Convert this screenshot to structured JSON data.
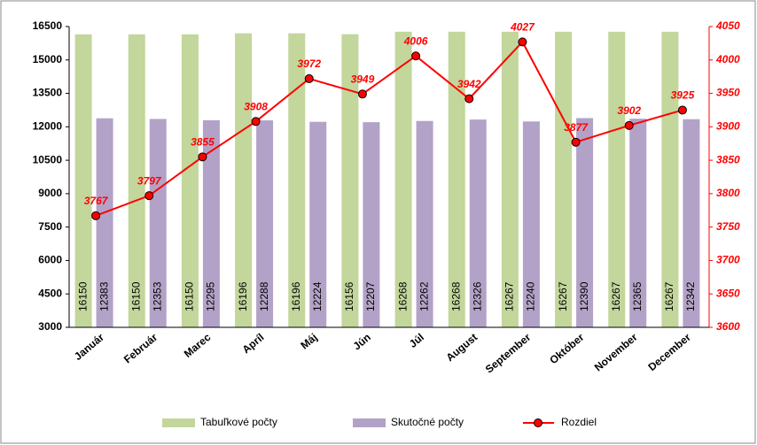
{
  "chart_data": {
    "type": "bar",
    "categories": [
      "Január",
      "Február",
      "Marec",
      "Apríl",
      "Máj",
      "Jún",
      "Júl",
      "August",
      "September",
      "Október",
      "November",
      "December"
    ],
    "series": [
      {
        "name": "Tabuľkové počty",
        "color": "#c3d69b",
        "values": [
          16150,
          16150,
          16150,
          16196,
          16196,
          16156,
          16268,
          16268,
          16267,
          16267,
          16267,
          16267
        ]
      },
      {
        "name": "Skutočné počty",
        "color": "#b3a2c7",
        "values": [
          12383,
          12353,
          12295,
          12288,
          12224,
          12207,
          12262,
          12326,
          12240,
          12390,
          12365,
          12342
        ]
      },
      {
        "name": "Rozdiel",
        "color": "#ff0000",
        "type": "line",
        "axis": "y2",
        "values": [
          3767,
          3797,
          3855,
          3908,
          3972,
          3949,
          4006,
          3942,
          4027,
          3877,
          3902,
          3925
        ]
      }
    ],
    "ylim": [
      3000,
      16500
    ],
    "yticks": [
      3000,
      4500,
      6000,
      7500,
      9000,
      10500,
      12000,
      13500,
      15000,
      16500
    ],
    "y2lim": [
      3600,
      4050
    ],
    "y2ticks": [
      3600,
      3650,
      3700,
      3750,
      3800,
      3850,
      3900,
      3950,
      4000,
      4050
    ],
    "grid": false,
    "legend": "bottom"
  }
}
